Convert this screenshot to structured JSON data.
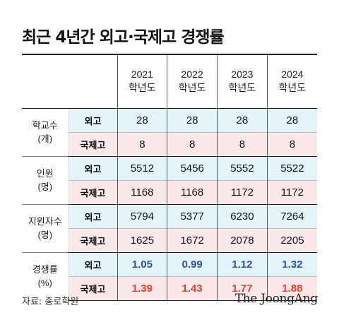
{
  "title": "최근 4년간 외고·국제고 경쟁률",
  "header": {
    "years": [
      {
        "year": "2021",
        "unit": "학년도"
      },
      {
        "year": "2022",
        "unit": "학년도"
      },
      {
        "year": "2023",
        "unit": "학년도"
      },
      {
        "year": "2024",
        "unit": "학년도"
      }
    ]
  },
  "groups": [
    {
      "label": "학교수",
      "unit": "(개)",
      "rows": [
        {
          "type": "외고",
          "values": [
            "28",
            "28",
            "28",
            "28"
          ]
        },
        {
          "type": "국제고",
          "values": [
            "8",
            "8",
            "8",
            "8"
          ]
        }
      ]
    },
    {
      "label": "인원",
      "unit": "(명)",
      "rows": [
        {
          "type": "외고",
          "values": [
            "5512",
            "5456",
            "5552",
            "5522"
          ]
        },
        {
          "type": "국제고",
          "values": [
            "1168",
            "1168",
            "1172",
            "1172"
          ]
        }
      ]
    },
    {
      "label": "지원자수",
      "unit": "(명)",
      "rows": [
        {
          "type": "외고",
          "values": [
            "5794",
            "5377",
            "6230",
            "7264"
          ]
        },
        {
          "type": "국제고",
          "values": [
            "1625",
            "1672",
            "2078",
            "2205"
          ]
        }
      ]
    },
    {
      "label": "경쟁률",
      "unit": "(%)",
      "rows": [
        {
          "type": "외고",
          "values": [
            "1.05",
            "0.99",
            "1.12",
            "1.32"
          ]
        },
        {
          "type": "국제고",
          "values": [
            "1.39",
            "1.43",
            "1.77",
            "1.88"
          ]
        }
      ]
    }
  ],
  "colors": {
    "domestic_bg": "#e3f3f7",
    "intl_bg": "#fbe8ea",
    "rate_domestic": "#2b55a8",
    "rate_intl": "#e8402a"
  },
  "source": "자료: 종로학원",
  "logo": "The JoongAng"
}
